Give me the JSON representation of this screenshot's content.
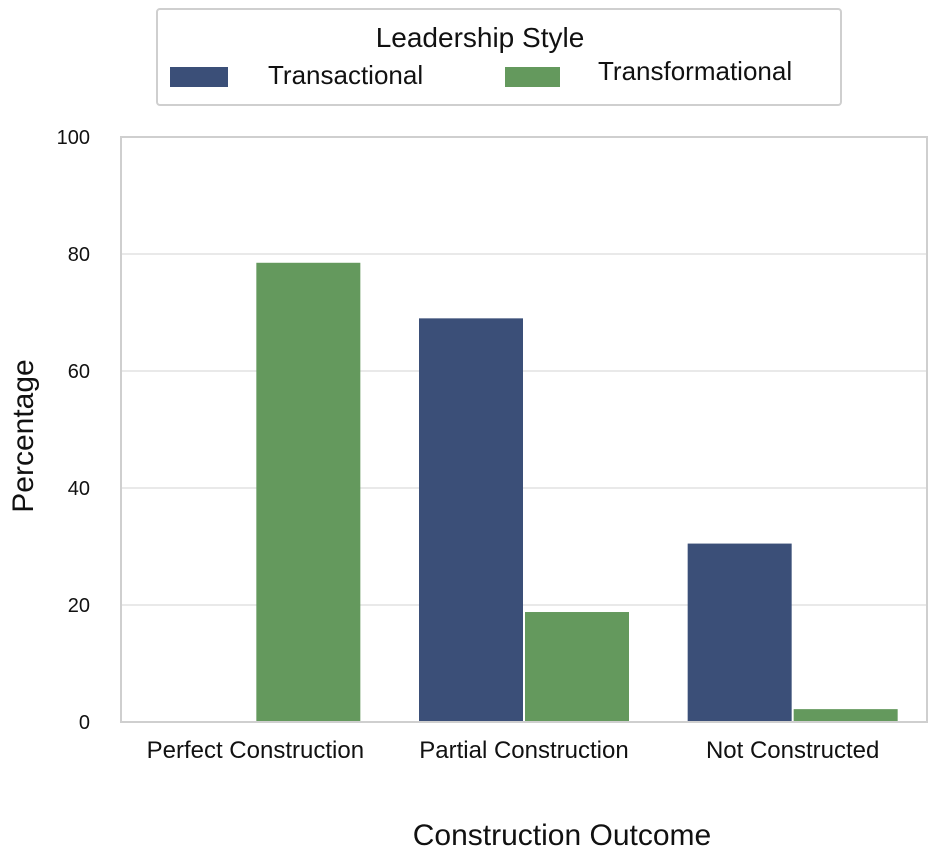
{
  "chart_data": {
    "type": "bar",
    "categories": [
      "Perfect Construction",
      "Partial Construction",
      "Not Constructed"
    ],
    "series": [
      {
        "name": "Transactional",
        "values": [
          0,
          69,
          30.5
        ],
        "color": "#3b4f78"
      },
      {
        "name": "Transformational",
        "values": [
          78.5,
          18.8,
          2.2
        ],
        "color": "#64995d"
      }
    ],
    "legend_title": "Leadership Style",
    "legend_placement": "top-center, outside plot",
    "xlabel": "Construction Outcome",
    "ylabel": "Percentage",
    "ylim": [
      0,
      100
    ],
    "yticks": [
      "0",
      "20",
      "40",
      "60",
      "80",
      "100"
    ],
    "grid": "horizontal"
  }
}
